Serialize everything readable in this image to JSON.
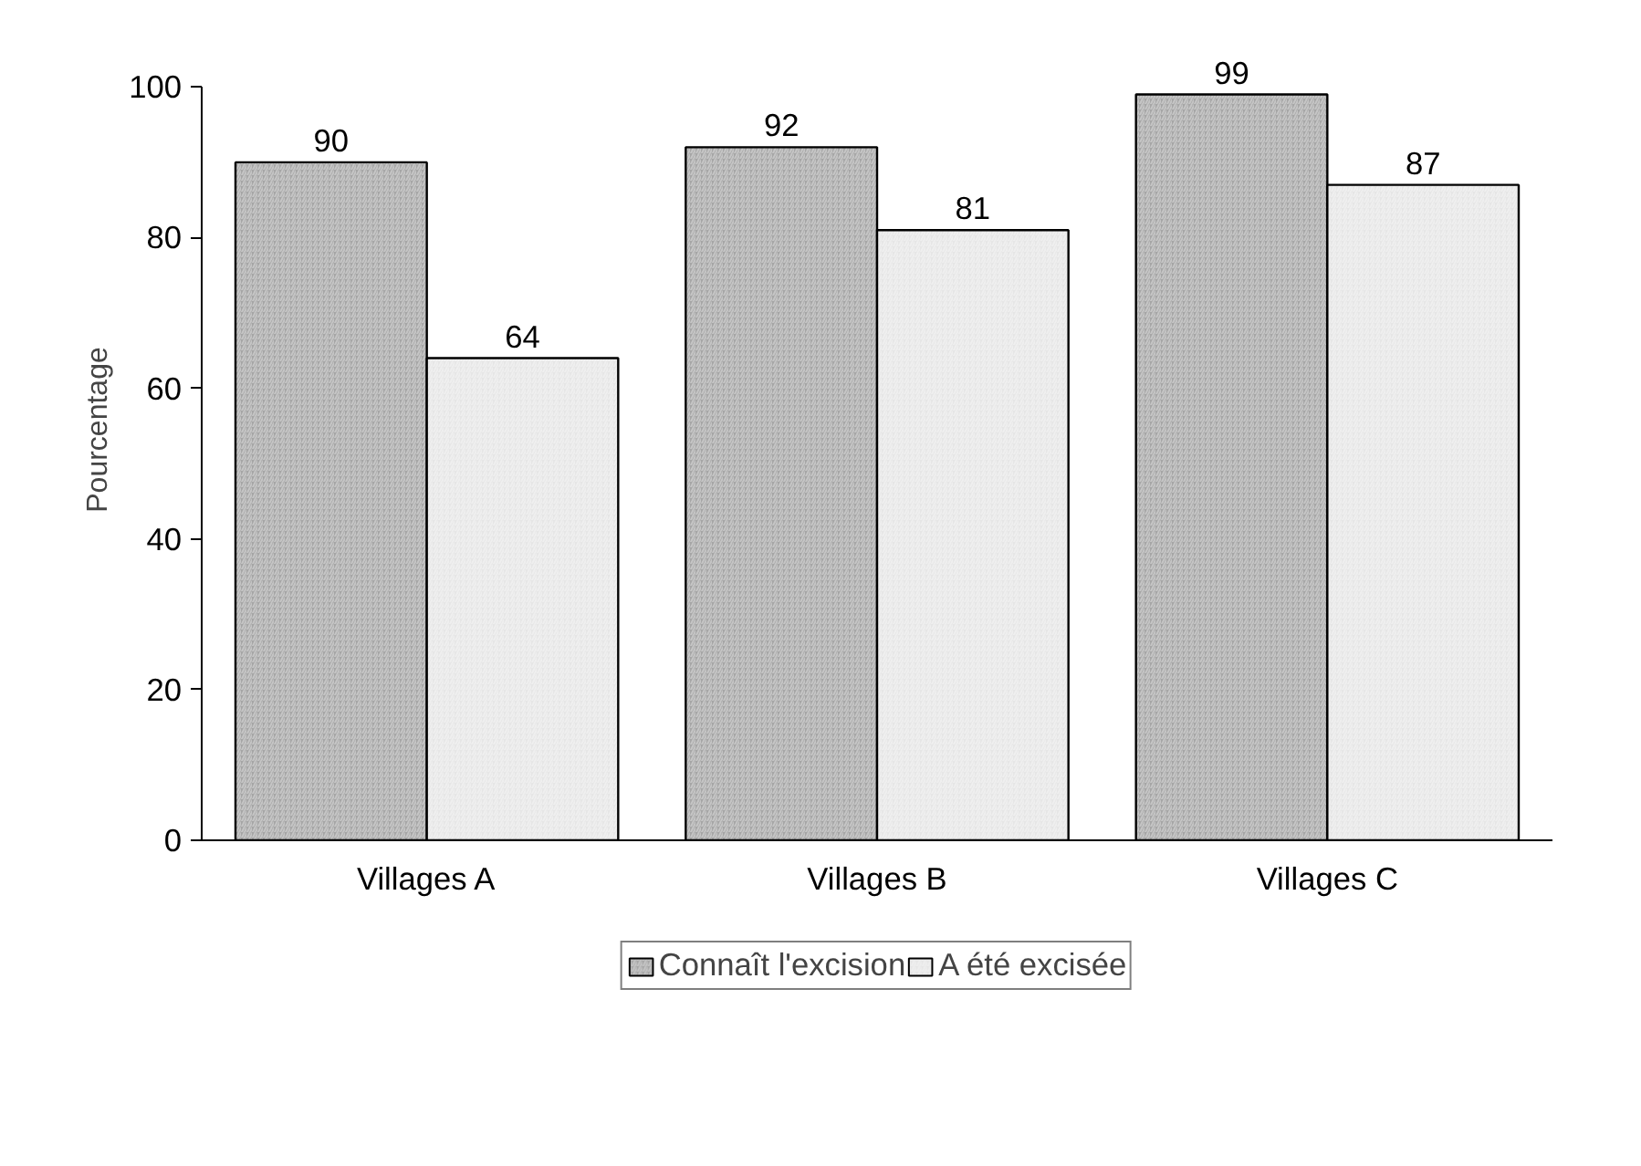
{
  "chart_data": {
    "type": "bar",
    "ylabel": "Pourcentage",
    "categories": [
      "Villages A",
      "Villages B",
      "Villages C"
    ],
    "series": [
      {
        "name": "Connaît l'excision",
        "color": "#a6a6a6",
        "values": [
          90,
          92,
          99
        ]
      },
      {
        "name": "A été excisée",
        "color": "#e6e6e6",
        "values": [
          64,
          81,
          87
        ]
      }
    ],
    "ylim": [
      0,
      100
    ],
    "yticks": [
      0,
      20,
      40,
      60,
      80,
      100
    ],
    "data_labels": true,
    "grid": false,
    "legend": "bottom"
  }
}
